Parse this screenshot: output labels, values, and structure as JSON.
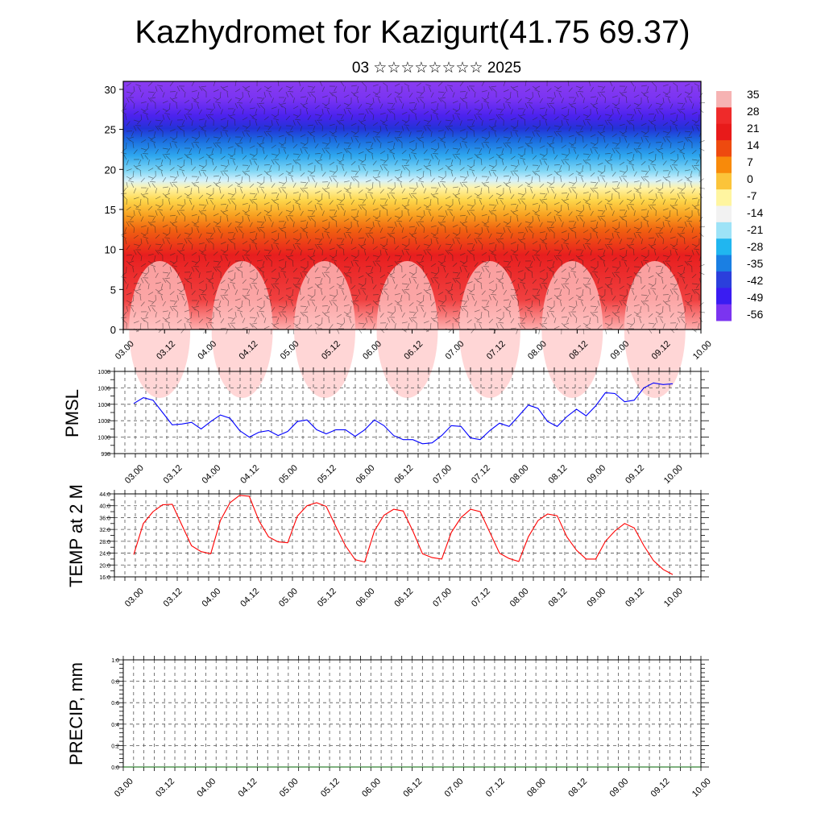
{
  "header": {
    "title": "Kazhydromet for Kazigurt(41.75 69.37)",
    "subtitle": "03 ☆☆☆☆☆☆☆☆ 2025"
  },
  "colors": {
    "pmsl_line": "#0000ff",
    "temp_line": "#ff0000",
    "precip_line": "#006400",
    "grid": "#555555"
  },
  "chart_data": [
    {
      "id": "cross-section",
      "type": "heatmap",
      "description_values": "temperature-like field with wind barbs",
      "ylim": [
        0,
        31
      ],
      "yticks": [
        0,
        5,
        10,
        15,
        20,
        25,
        30
      ],
      "x_tick_labels": [
        "03.00",
        "03.12",
        "04.00",
        "04.12",
        "05.00",
        "05.12",
        "06.00",
        "06.12",
        "07.00",
        "07.12",
        "08.00",
        "08.12",
        "09.00",
        "09.12",
        "10.00"
      ],
      "colorbar_labels": [
        "35",
        "28",
        "21",
        "14",
        "7",
        "0",
        "-7",
        "-14",
        "-21",
        "-28",
        "-35",
        "-42",
        "-49",
        "-56"
      ],
      "colorbar_colors": [
        "#f6b3b3",
        "#ef2a2a",
        "#e81a1a",
        "#ee4a0f",
        "#f88a0a",
        "#fbc43a",
        "#fff5a0",
        "#f2f2f2",
        "#9ee3f7",
        "#20b6f0",
        "#1a7fe3",
        "#2b3fdc",
        "#3a1cf2",
        "#7b34f0"
      ]
    },
    {
      "id": "pmsl",
      "type": "line",
      "ylabel": "PMSL",
      "ylim": [
        998,
        1008
      ],
      "yticks": [
        "998",
        "1000",
        "1002",
        "1004",
        "1006",
        "1008"
      ],
      "x_tick_labels": [
        "03.00",
        "03.12",
        "04.00",
        "04.12",
        "05.00",
        "05.12",
        "06.00",
        "06.12",
        "07.00",
        "07.12",
        "08.00",
        "08.12",
        "09.00",
        "09.12",
        "10.00"
      ],
      "values": [
        1004.1,
        1004.8,
        1004.5,
        1003.0,
        1001.5,
        1001.6,
        1001.8,
        1001.0,
        1001.9,
        1002.7,
        1002.3,
        1000.8,
        1000.0,
        1000.6,
        1000.8,
        1000.2,
        1000.7,
        1001.9,
        1002.1,
        1000.9,
        1000.4,
        1000.9,
        1000.9,
        1000.1,
        1000.9,
        1002.1,
        1001.4,
        1000.2,
        999.7,
        999.7,
        999.2,
        999.3,
        1000.2,
        1001.4,
        1001.3,
        999.9,
        999.7,
        1000.8,
        1001.7,
        1001.3,
        1002.6,
        1003.9,
        1003.5,
        1001.9,
        1001.3,
        1002.5,
        1003.4,
        1002.6,
        1003.8,
        1005.4,
        1005.3,
        1004.3,
        1004.5,
        1006.0,
        1006.6,
        1006.4,
        1006.5
      ]
    },
    {
      "id": "temp2m",
      "type": "line",
      "ylabel": "TEMP at 2 M",
      "ylim": [
        16,
        44
      ],
      "yticks": [
        "16.0",
        "20.0",
        "24.0",
        "28.0",
        "32.0",
        "36.0",
        "40.0",
        "44.0"
      ],
      "x_tick_labels": [
        "03.00",
        "03.12",
        "04.00",
        "04.12",
        "05.00",
        "05.12",
        "06.00",
        "06.12",
        "07.00",
        "07.12",
        "08.00",
        "08.12",
        "09.00",
        "09.12",
        "10.00"
      ],
      "values": [
        23.5,
        34.0,
        38.0,
        40.3,
        40.5,
        33.5,
        26.5,
        24.5,
        23.8,
        35.0,
        41.0,
        43.5,
        43.2,
        35.0,
        29.5,
        27.8,
        27.5,
        36.5,
        40.0,
        41.0,
        39.8,
        33.0,
        26.5,
        21.8,
        21.0,
        31.5,
        36.8,
        38.8,
        38.2,
        31.5,
        23.8,
        22.5,
        22.0,
        31.0,
        36.0,
        38.8,
        38.0,
        31.0,
        24.0,
        22.2,
        21.2,
        29.5,
        35.0,
        37.2,
        36.6,
        29.5,
        25.0,
        22.0,
        22.0,
        28.0,
        31.5,
        34.0,
        32.5,
        26.5,
        21.5,
        18.5,
        16.8
      ]
    },
    {
      "id": "precip",
      "type": "line",
      "ylabel": "PRECIP, mm",
      "ylim": [
        0,
        1
      ],
      "yticks": [
        "0.0",
        "0.2",
        "0.4",
        "0.6",
        "0.8",
        "1.0"
      ],
      "x_tick_labels": [
        "03.00",
        "03.12",
        "04.00",
        "04.12",
        "05.00",
        "05.12",
        "06.00",
        "06.12",
        "07.00",
        "07.12",
        "08.00",
        "08.12",
        "09.00",
        "09.12",
        "10.00"
      ],
      "values": [
        0,
        0,
        0,
        0,
        0,
        0,
        0,
        0,
        0,
        0,
        0,
        0,
        0,
        0,
        0,
        0,
        0,
        0,
        0,
        0,
        0,
        0,
        0,
        0,
        0,
        0,
        0,
        0,
        0,
        0,
        0,
        0,
        0,
        0,
        0,
        0,
        0,
        0,
        0,
        0,
        0,
        0,
        0,
        0,
        0,
        0,
        0,
        0,
        0,
        0,
        0,
        0,
        0,
        0,
        0,
        0,
        0,
        0
      ]
    }
  ]
}
